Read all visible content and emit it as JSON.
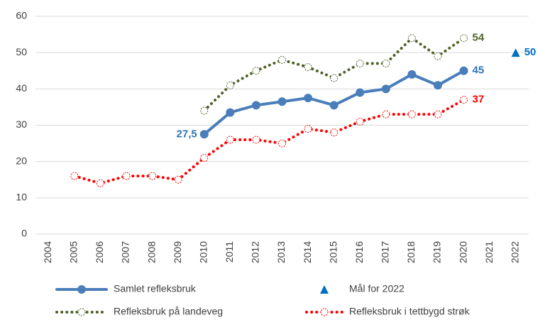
{
  "chart_data": {
    "type": "line",
    "categories": [
      "2004",
      "2005",
      "2006",
      "2007",
      "2008",
      "2009",
      "2010",
      "2011",
      "2012",
      "2013",
      "2014",
      "2015",
      "2016",
      "2017",
      "2018",
      "2019",
      "2020",
      "2021",
      "2022"
    ],
    "ylim": [
      0,
      60
    ],
    "yticks": [
      0,
      10,
      20,
      30,
      40,
      50,
      60
    ],
    "grid": true,
    "legend": "bottom",
    "series": [
      {
        "name": "Samlet refleksbruk",
        "color": "#4a7ebb",
        "line": "solid",
        "marker": "filled-circle",
        "values": [
          null,
          null,
          null,
          null,
          null,
          null,
          27.5,
          33.5,
          35.5,
          36.5,
          37.5,
          35.5,
          39,
          40,
          44,
          41,
          45,
          null,
          null
        ],
        "value_labels": [
          null,
          null,
          null,
          null,
          null,
          null,
          "27,5",
          null,
          null,
          null,
          null,
          null,
          null,
          null,
          null,
          null,
          "45",
          null,
          null
        ],
        "label_color": "#2e75b6"
      },
      {
        "name": "Mål for 2022",
        "color": "#0070c0",
        "line": "none",
        "marker": "triangle",
        "values": [
          null,
          null,
          null,
          null,
          null,
          null,
          null,
          null,
          null,
          null,
          null,
          null,
          null,
          null,
          null,
          null,
          null,
          null,
          50
        ],
        "value_labels": [
          null,
          null,
          null,
          null,
          null,
          null,
          null,
          null,
          null,
          null,
          null,
          null,
          null,
          null,
          null,
          null,
          null,
          null,
          "50"
        ],
        "label_color": "#0070c0"
      },
      {
        "name": "Refleksbruk på landeveg",
        "color": "#4f6228",
        "line": "dotted",
        "marker": "hollow-circle",
        "values": [
          null,
          null,
          null,
          null,
          null,
          null,
          34,
          41,
          45,
          48,
          46,
          43,
          47,
          47,
          54,
          49,
          54,
          null,
          null
        ],
        "value_labels": [
          null,
          null,
          null,
          null,
          null,
          null,
          null,
          null,
          null,
          null,
          null,
          null,
          null,
          null,
          null,
          null,
          "54",
          null,
          null
        ],
        "label_color": "#4f6228"
      },
      {
        "name": "Refleksbruk i tettbygd strøk",
        "color": "#ff0000",
        "line": "dotted",
        "marker": "hollow-circle",
        "values": [
          null,
          16,
          14,
          16,
          16,
          15,
          21,
          26,
          26,
          25,
          29,
          28,
          31,
          33,
          33,
          33,
          37,
          null,
          null
        ],
        "value_labels": [
          null,
          null,
          null,
          null,
          null,
          null,
          null,
          null,
          null,
          null,
          null,
          null,
          null,
          null,
          null,
          null,
          "37",
          null,
          null
        ],
        "label_color": "#ff0000"
      }
    ]
  }
}
